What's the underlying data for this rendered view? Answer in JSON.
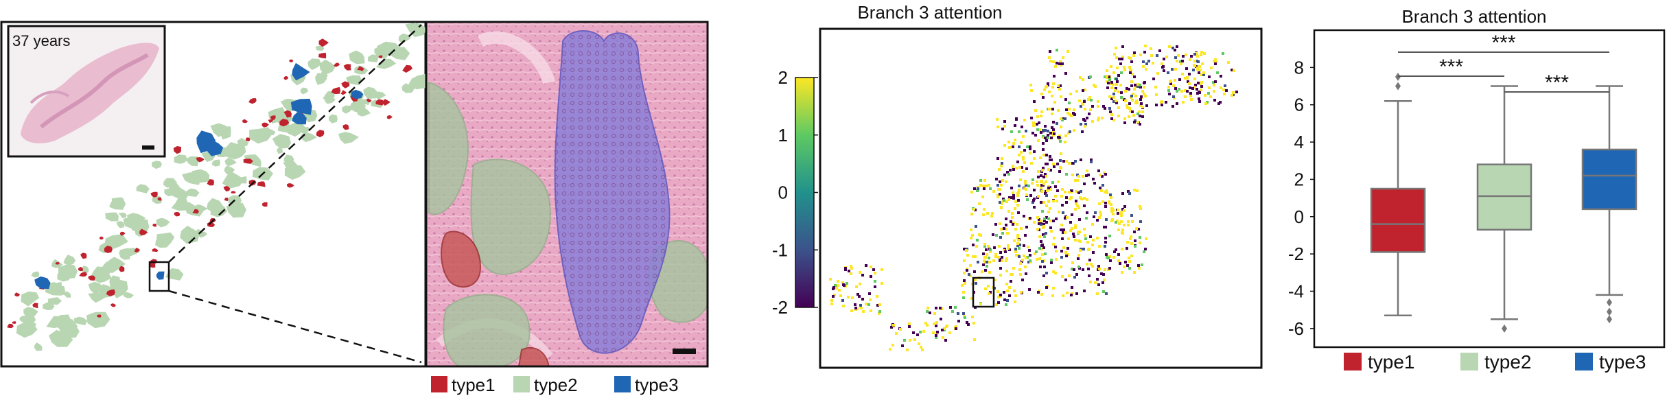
{
  "panel_a": {
    "inset_label": "37 years",
    "legend": [
      {
        "label": "type1",
        "color": "#c0222e"
      },
      {
        "label": "type2",
        "color": "#b8d6b2"
      },
      {
        "label": "type3",
        "color": "#1f66b4"
      }
    ]
  },
  "panel_b": {
    "title": "Branch 3 attention",
    "colorbar": {
      "ticks": [
        "2",
        "1",
        "0",
        "-1",
        "-2"
      ],
      "min": -2,
      "max": 2,
      "colors": [
        "#440154",
        "#3b528b",
        "#21918c",
        "#5ec962",
        "#fde725"
      ]
    }
  },
  "chart_data": {
    "type": "box",
    "title": "Branch 3 attention",
    "xlabel": "",
    "ylabel": "",
    "ylim": [
      -7,
      10
    ],
    "yticks": [
      "8",
      "6",
      "4",
      "2",
      "0",
      "-2",
      "-4",
      "-6"
    ],
    "categories": [
      "type1",
      "type2",
      "type3"
    ],
    "colors": {
      "type1": "#c0222e",
      "type2": "#b8d6b2",
      "type3": "#1f66b4"
    },
    "boxes": [
      {
        "name": "type1",
        "q1": -1.9,
        "median": -0.4,
        "q3": 1.5,
        "whisker_low": -5.3,
        "whisker_high": 6.2,
        "outliers": [
          7.0,
          7.5
        ]
      },
      {
        "name": "type2",
        "q1": -0.7,
        "median": 1.1,
        "q3": 2.8,
        "whisker_low": -5.5,
        "whisker_high": 7.0,
        "outliers": [
          -6.0
        ]
      },
      {
        "name": "type3",
        "q1": 0.4,
        "median": 2.2,
        "q3": 3.6,
        "whisker_low": -4.2,
        "whisker_high": 7.0,
        "outliers": [
          -4.6,
          -5.1,
          -5.5
        ]
      }
    ],
    "significance": [
      {
        "from": "type1",
        "to": "type3",
        "label": "***"
      },
      {
        "from": "type1",
        "to": "type2",
        "label": "***"
      },
      {
        "from": "type2",
        "to": "type3",
        "label": "***"
      }
    ]
  }
}
